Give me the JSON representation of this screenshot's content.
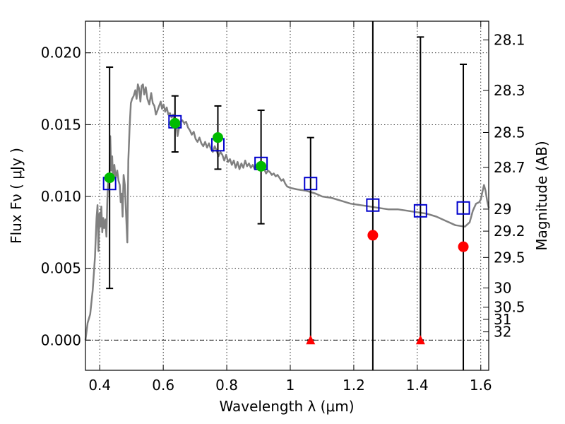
{
  "chart_data": {
    "type": "scatter",
    "xlabel": "Wavelength  λ (μm)",
    "ylabel": "Flux  Fν  ( μJy )",
    "ylabel_right": "Magnitude (AB)",
    "xlim": [
      0.355,
      1.625
    ],
    "ylim": [
      -0.0021,
      0.0222
    ],
    "grid": true,
    "x_ticks": [
      {
        "value": 0.4,
        "label": "0.4"
      },
      {
        "value": 0.6,
        "label": "0.6"
      },
      {
        "value": 0.8,
        "label": "0.8"
      },
      {
        "value": 1.0,
        "label": "1"
      },
      {
        "value": 1.2,
        "label": "1.2"
      },
      {
        "value": 1.4,
        "label": "1.4"
      },
      {
        "value": 1.6,
        "label": "1.6"
      }
    ],
    "y_ticks": [
      {
        "value": 0.0,
        "label": "0.000"
      },
      {
        "value": 0.005,
        "label": "0.005"
      },
      {
        "value": 0.01,
        "label": "0.010"
      },
      {
        "value": 0.015,
        "label": "0.015"
      },
      {
        "value": 0.02,
        "label": "0.020"
      }
    ],
    "magnitude_ticks": [
      {
        "value": 28.1,
        "label": "28.1"
      },
      {
        "value": 28.3,
        "label": "28.3"
      },
      {
        "value": 28.5,
        "label": "28.5"
      },
      {
        "value": 28.7,
        "label": "28.7"
      },
      {
        "value": 29.0,
        "label": "29"
      },
      {
        "value": 29.2,
        "label": "29.2"
      },
      {
        "value": 29.5,
        "label": "29.5"
      },
      {
        "value": 30.0,
        "label": "30"
      },
      {
        "value": 30.5,
        "label": "30.5"
      },
      {
        "value": 31.0,
        "label": "31"
      },
      {
        "value": 32.0,
        "label": "32"
      }
    ],
    "model_spectrum": {
      "color": "#808080",
      "points": [
        [
          0.355,
          0.0
        ],
        [
          0.362,
          0.0012
        ],
        [
          0.37,
          0.0018
        ],
        [
          0.378,
          0.0035
        ],
        [
          0.385,
          0.0058
        ],
        [
          0.39,
          0.0085
        ],
        [
          0.393,
          0.0094
        ],
        [
          0.396,
          0.0062
        ],
        [
          0.399,
          0.0088
        ],
        [
          0.402,
          0.0079
        ],
        [
          0.405,
          0.0093
        ],
        [
          0.408,
          0.0075
        ],
        [
          0.411,
          0.0085
        ],
        [
          0.414,
          0.0078
        ],
        [
          0.418,
          0.0084
        ],
        [
          0.421,
          0.0072
        ],
        [
          0.424,
          0.0098
        ],
        [
          0.427,
          0.0112
        ],
        [
          0.43,
          0.0105
        ],
        [
          0.433,
          0.0142
        ],
        [
          0.436,
          0.0118
        ],
        [
          0.439,
          0.0128
        ],
        [
          0.442,
          0.0112
        ],
        [
          0.446,
          0.0122
        ],
        [
          0.45,
          0.0113
        ],
        [
          0.455,
          0.0118
        ],
        [
          0.459,
          0.0111
        ],
        [
          0.463,
          0.0108
        ],
        [
          0.466,
          0.0096
        ],
        [
          0.469,
          0.0102
        ],
        [
          0.472,
          0.0086
        ],
        [
          0.475,
          0.0115
        ],
        [
          0.479,
          0.0108
        ],
        [
          0.483,
          0.0088
        ],
        [
          0.487,
          0.0068
        ],
        [
          0.49,
          0.0125
        ],
        [
          0.494,
          0.0148
        ],
        [
          0.498,
          0.0165
        ],
        [
          0.502,
          0.0168
        ],
        [
          0.507,
          0.017
        ],
        [
          0.512,
          0.0174
        ],
        [
          0.516,
          0.0168
        ],
        [
          0.52,
          0.0178
        ],
        [
          0.524,
          0.0175
        ],
        [
          0.528,
          0.0166
        ],
        [
          0.532,
          0.0177
        ],
        [
          0.536,
          0.0178
        ],
        [
          0.54,
          0.0171
        ],
        [
          0.545,
          0.0176
        ],
        [
          0.55,
          0.0168
        ],
        [
          0.556,
          0.0164
        ],
        [
          0.562,
          0.0172
        ],
        [
          0.567,
          0.0165
        ],
        [
          0.572,
          0.0163
        ],
        [
          0.577,
          0.0157
        ],
        [
          0.582,
          0.016
        ],
        [
          0.587,
          0.0163
        ],
        [
          0.592,
          0.0166
        ],
        [
          0.596,
          0.0161
        ],
        [
          0.601,
          0.0164
        ],
        [
          0.606,
          0.0159
        ],
        [
          0.611,
          0.0162
        ],
        [
          0.616,
          0.0157
        ],
        [
          0.621,
          0.0158
        ],
        [
          0.626,
          0.0155
        ],
        [
          0.631,
          0.0157
        ],
        [
          0.636,
          0.0151
        ],
        [
          0.641,
          0.015
        ],
        [
          0.645,
          0.0142
        ],
        [
          0.649,
          0.0147
        ],
        [
          0.654,
          0.0152
        ],
        [
          0.66,
          0.0153
        ],
        [
          0.666,
          0.0151
        ],
        [
          0.672,
          0.0152
        ],
        [
          0.678,
          0.0148
        ],
        [
          0.684,
          0.0146
        ],
        [
          0.69,
          0.0143
        ],
        [
          0.696,
          0.0145
        ],
        [
          0.702,
          0.014
        ],
        [
          0.708,
          0.0138
        ],
        [
          0.714,
          0.0141
        ],
        [
          0.72,
          0.0137
        ],
        [
          0.726,
          0.0135
        ],
        [
          0.732,
          0.0138
        ],
        [
          0.738,
          0.0134
        ],
        [
          0.744,
          0.0137
        ],
        [
          0.75,
          0.0133
        ],
        [
          0.756,
          0.0131
        ],
        [
          0.762,
          0.0135
        ],
        [
          0.768,
          0.0132
        ],
        [
          0.774,
          0.0128
        ],
        [
          0.78,
          0.0131
        ],
        [
          0.786,
          0.0129
        ],
        [
          0.792,
          0.0125
        ],
        [
          0.798,
          0.0129
        ],
        [
          0.804,
          0.0124
        ],
        [
          0.81,
          0.0126
        ],
        [
          0.816,
          0.0122
        ],
        [
          0.822,
          0.0125
        ],
        [
          0.828,
          0.012
        ],
        [
          0.834,
          0.0124
        ],
        [
          0.84,
          0.0119
        ],
        [
          0.846,
          0.0123
        ],
        [
          0.852,
          0.012
        ],
        [
          0.858,
          0.0125
        ],
        [
          0.864,
          0.0121
        ],
        [
          0.87,
          0.0123
        ],
        [
          0.876,
          0.012
        ],
        [
          0.882,
          0.0122
        ],
        [
          0.888,
          0.0119
        ],
        [
          0.894,
          0.0122
        ],
        [
          0.9,
          0.0121
        ],
        [
          0.906,
          0.0118
        ],
        [
          0.912,
          0.0121
        ],
        [
          0.918,
          0.0119
        ],
        [
          0.924,
          0.0116
        ],
        [
          0.93,
          0.0118
        ],
        [
          0.936,
          0.0117
        ],
        [
          0.942,
          0.0115
        ],
        [
          0.948,
          0.0116
        ],
        [
          0.954,
          0.0114
        ],
        [
          0.96,
          0.0115
        ],
        [
          0.966,
          0.0113
        ],
        [
          0.972,
          0.0111
        ],
        [
          0.978,
          0.0112
        ],
        [
          0.984,
          0.0109
        ],
        [
          0.99,
          0.0107
        ],
        [
          1.0,
          0.0106
        ],
        [
          1.02,
          0.0105
        ],
        [
          1.05,
          0.0104
        ],
        [
          1.08,
          0.0102
        ],
        [
          1.1,
          0.01
        ],
        [
          1.13,
          0.0099
        ],
        [
          1.16,
          0.0097
        ],
        [
          1.19,
          0.0095
        ],
        [
          1.22,
          0.0094
        ],
        [
          1.25,
          0.0093
        ],
        [
          1.28,
          0.0092
        ],
        [
          1.31,
          0.0091
        ],
        [
          1.34,
          0.0091
        ],
        [
          1.37,
          0.009
        ],
        [
          1.4,
          0.0089
        ],
        [
          1.43,
          0.0088
        ],
        [
          1.46,
          0.0086
        ],
        [
          1.49,
          0.0083
        ],
        [
          1.52,
          0.008
        ],
        [
          1.55,
          0.0079
        ],
        [
          1.565,
          0.0082
        ],
        [
          1.575,
          0.009
        ],
        [
          1.585,
          0.0095
        ],
        [
          1.595,
          0.0096
        ],
        [
          1.6,
          0.0098
        ],
        [
          1.605,
          0.0103
        ],
        [
          1.61,
          0.0108
        ],
        [
          1.615,
          0.0104
        ],
        [
          1.62,
          0.0097
        ],
        [
          1.625,
          0.0092
        ]
      ]
    },
    "model_photometry": {
      "marker": "open-square",
      "color": "#0000cc",
      "points": [
        {
          "x": 0.431,
          "y": 0.0109
        },
        {
          "x": 0.637,
          "y": 0.0152
        },
        {
          "x": 0.772,
          "y": 0.0136
        },
        {
          "x": 0.908,
          "y": 0.0123
        },
        {
          "x": 1.064,
          "y": 0.0109
        },
        {
          "x": 1.26,
          "y": 0.0094
        },
        {
          "x": 1.41,
          "y": 0.009
        },
        {
          "x": 1.545,
          "y": 0.0092
        }
      ]
    },
    "error_bars": [
      {
        "x": 0.431,
        "low": 0.0036,
        "high": 0.019
      },
      {
        "x": 0.637,
        "low": 0.0131,
        "high": 0.017
      },
      {
        "x": 0.772,
        "low": 0.0119,
        "high": 0.0163
      },
      {
        "x": 0.908,
        "low": 0.0081,
        "high": 0.016
      },
      {
        "x": 1.064,
        "low": 0.0,
        "high": 0.0141
      },
      {
        "x": 1.26,
        "low": -0.0021,
        "high": 0.0222
      },
      {
        "x": 1.41,
        "low": 0.0,
        "high": 0.0211
      },
      {
        "x": 1.545,
        "low": -0.0021,
        "high": 0.0192
      }
    ],
    "detections": {
      "marker": "filled-circle",
      "color": "#00bb00",
      "points": [
        {
          "x": 0.431,
          "y": 0.0113
        },
        {
          "x": 0.637,
          "y": 0.0151
        },
        {
          "x": 0.772,
          "y": 0.0141
        },
        {
          "x": 0.908,
          "y": 0.0121
        }
      ]
    },
    "non_detections": {
      "marker": "filled-circle",
      "color": "#ff0000",
      "points": [
        {
          "x": 1.26,
          "y": 0.0073
        },
        {
          "x": 1.545,
          "y": 0.0065
        }
      ]
    },
    "upper_limits": {
      "marker": "filled-triangle",
      "color": "#ff0000",
      "points": [
        {
          "x": 1.064,
          "y": 0.0
        },
        {
          "x": 1.41,
          "y": 0.0
        }
      ]
    },
    "zero_line": {
      "y": 0.0,
      "style": "dash-dot"
    }
  }
}
